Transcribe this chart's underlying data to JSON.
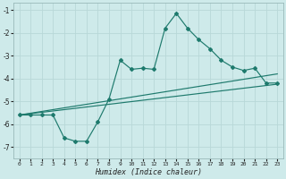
{
  "xlabel": "Humidex (Indice chaleur)",
  "x": [
    0,
    1,
    2,
    3,
    4,
    5,
    6,
    7,
    8,
    9,
    10,
    11,
    12,
    13,
    14,
    15,
    16,
    17,
    18,
    19,
    20,
    21,
    22,
    23
  ],
  "main_line": [
    -5.6,
    -5.6,
    -5.6,
    -5.6,
    -6.6,
    -6.75,
    -6.75,
    -5.9,
    -4.9,
    -3.2,
    -3.6,
    -3.55,
    -3.6,
    -1.8,
    -1.15,
    -1.8,
    -2.3,
    -2.7,
    -3.2,
    -3.5,
    -3.65,
    -3.55,
    -4.2,
    -4.2
  ],
  "trend1_x": [
    0,
    23
  ],
  "trend1_y": [
    -5.6,
    -3.8
  ],
  "trend2_x": [
    0,
    23
  ],
  "trend2_y": [
    -5.6,
    -4.25
  ],
  "ylim": [
    -7.5,
    -0.7
  ],
  "xlim": [
    -0.5,
    23.5
  ],
  "yticks": [
    -7,
    -6,
    -5,
    -4,
    -3,
    -2,
    -1
  ],
  "xticks": [
    0,
    1,
    2,
    3,
    4,
    5,
    6,
    7,
    8,
    9,
    10,
    11,
    12,
    13,
    14,
    15,
    16,
    17,
    18,
    19,
    20,
    21,
    22,
    23
  ],
  "line_color": "#1e7a6d",
  "bg_color": "#ceeaea",
  "grid_color": "#b8d8d8",
  "tick_color": "#222222"
}
